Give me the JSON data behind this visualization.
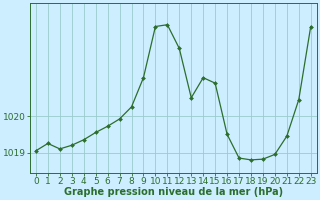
{
  "x": [
    0,
    1,
    2,
    3,
    4,
    5,
    6,
    7,
    8,
    9,
    10,
    11,
    12,
    13,
    14,
    15,
    16,
    17,
    18,
    19,
    20,
    21,
    22,
    23
  ],
  "y": [
    1019.05,
    1019.25,
    1019.1,
    1019.2,
    1019.35,
    1019.55,
    1019.72,
    1019.92,
    1020.25,
    1021.05,
    1022.45,
    1022.5,
    1021.85,
    1020.5,
    1021.05,
    1020.9,
    1019.5,
    1018.85,
    1018.8,
    1018.82,
    1018.95,
    1019.45,
    1020.45,
    1022.45
  ],
  "line_color": "#2d6e2d",
  "marker": "D",
  "marker_size": 2.0,
  "bg_color": "#cceeff",
  "grid_color": "#99cccc",
  "ytick_positions": [
    1019,
    1020
  ],
  "ytick_labels": [
    "1019",
    "1020"
  ],
  "xtick_labels": [
    "0",
    "1",
    "2",
    "3",
    "4",
    "5",
    "6",
    "7",
    "8",
    "9",
    "10",
    "11",
    "12",
    "13",
    "14",
    "15",
    "16",
    "17",
    "18",
    "19",
    "20",
    "21",
    "22",
    "23"
  ],
  "ylim_min": 1018.45,
  "ylim_max": 1023.1,
  "xlim_min": -0.5,
  "xlim_max": 23.5,
  "spine_color": "#2d6e2d",
  "xlabel_label": "Graphe pression niveau de la mer (hPa)",
  "xlabel_fontsize": 7,
  "tick_fontsize": 6.5
}
